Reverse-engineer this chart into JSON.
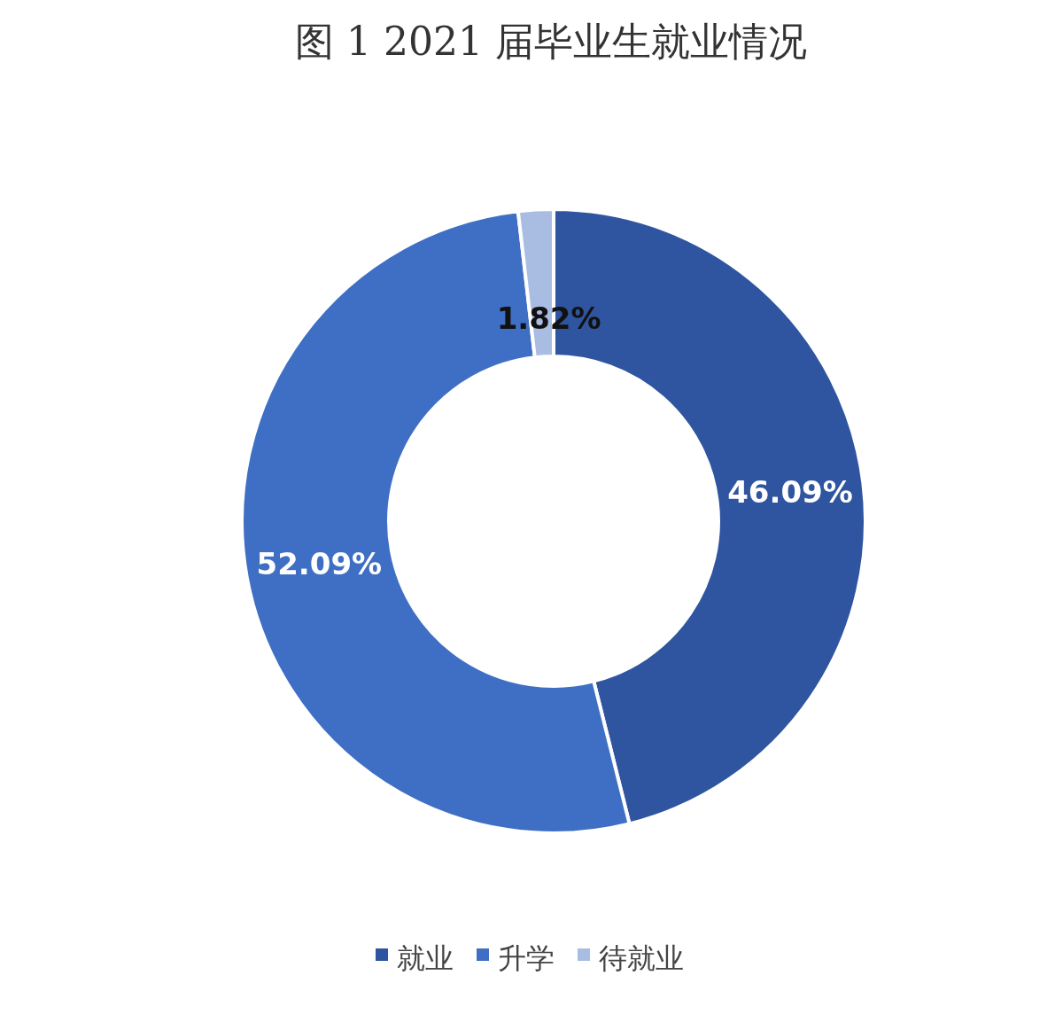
{
  "chart_data": {
    "type": "donut",
    "title": "图 1 2021 届毕业生就业情况",
    "categories": [
      "就业",
      "升学",
      "待就业"
    ],
    "values": [
      46.09,
      52.09,
      1.82
    ],
    "colors": [
      "#2f55a0",
      "#3f6fc4",
      "#a9bde3"
    ],
    "value_labels": [
      "46.09%",
      "52.09%",
      "1.82%"
    ],
    "legend": "bottom"
  }
}
